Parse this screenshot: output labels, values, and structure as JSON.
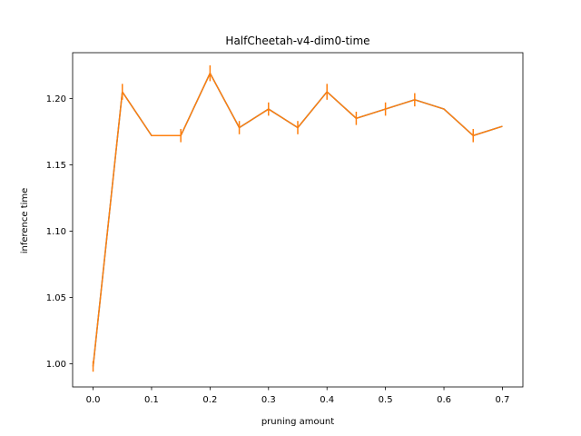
{
  "chart_data": {
    "type": "line",
    "title": "HalfCheetah-v4-dim0-time",
    "xlabel": "pruning amount",
    "ylabel": "inference time",
    "xlim": [
      -0.035,
      0.735
    ],
    "ylim": [
      0.9825,
      1.2345
    ],
    "xticks": [
      0.0,
      0.1,
      0.2,
      0.3,
      0.4,
      0.5,
      0.6,
      0.7
    ],
    "xtick_labels": [
      "0.0",
      "0.1",
      "0.2",
      "0.3",
      "0.4",
      "0.5",
      "0.6",
      "0.7"
    ],
    "yticks": [
      1.0,
      1.05,
      1.1,
      1.15,
      1.2
    ],
    "ytick_labels": [
      "1.00",
      "1.05",
      "1.10",
      "1.15",
      "1.20"
    ],
    "grid": false,
    "line_color": "#ff7f0e",
    "under_line_color": "#1f77b4",
    "x": [
      0.0,
      0.05,
      0.1,
      0.15,
      0.2,
      0.25,
      0.3,
      0.35,
      0.4,
      0.45,
      0.5,
      0.55,
      0.6,
      0.65,
      0.7
    ],
    "y": [
      0.998,
      1.205,
      1.172,
      1.172,
      1.219,
      1.178,
      1.192,
      1.178,
      1.205,
      1.185,
      1.192,
      1.199,
      1.192,
      1.172,
      1.179
    ],
    "yerr": [
      0.004,
      0.006,
      0.0,
      0.005,
      0.006,
      0.005,
      0.005,
      0.005,
      0.006,
      0.005,
      0.005,
      0.005,
      0.0,
      0.005,
      0.0
    ]
  }
}
